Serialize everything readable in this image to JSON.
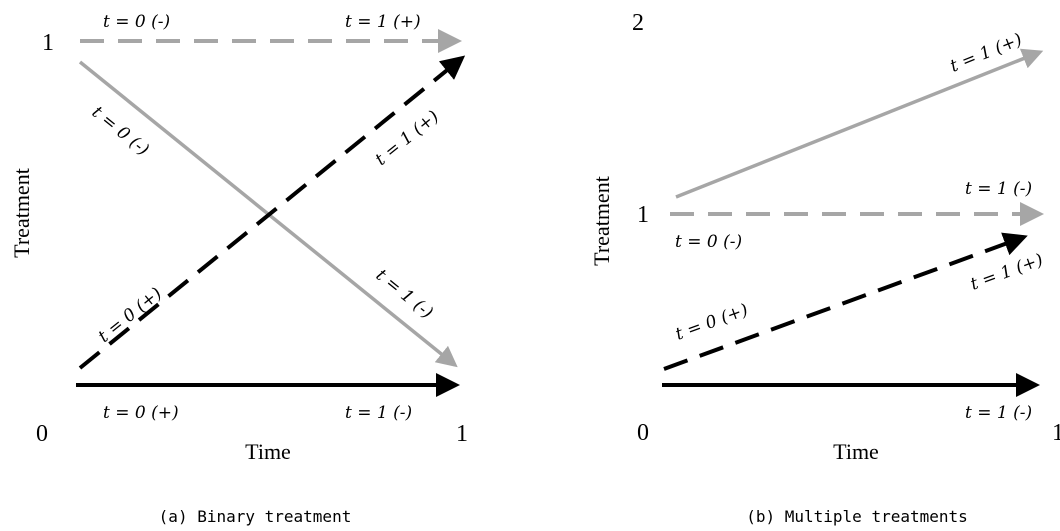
{
  "panel_a": {
    "y_tick_top": "1",
    "y_tick_bottom": "0",
    "x_tick_right": "1",
    "y_axis_label": "Treatment",
    "x_axis_label": "Time",
    "caption": "(a) Binary treatment",
    "labels": {
      "dashed_gray_t0": "t = 0 (-)",
      "dashed_gray_t1": "t = 1 (+)",
      "solid_gray_t0": "t = 0 (-)",
      "solid_gray_t1": "t = 1 (-)",
      "dashed_black_t0": "t = 0 (+)",
      "dashed_black_t1": "t = 1 (+)",
      "solid_black_t0": "t = 0 (+)",
      "solid_black_t1": "t = 1 (-)"
    }
  },
  "panel_b": {
    "y_tick_top": "2",
    "y_tick_mid": "1",
    "y_tick_bottom": "0",
    "x_tick_right": "1",
    "y_axis_label": "Treatment",
    "x_axis_label": "Time",
    "caption": "(b) Multiple treatments",
    "labels": {
      "solid_gray_t1": "t = 1 (+)",
      "dashed_gray_t0": "t = 0 (-)",
      "dashed_gray_t1": "t = 1 (-)",
      "dashed_black_t0": "t = 0 (+)",
      "dashed_black_t1": "t = 1 (+)",
      "solid_black_t1": "t = 1 (-)"
    }
  },
  "colors": {
    "gray": "#a6a6a6",
    "black": "#000000"
  }
}
